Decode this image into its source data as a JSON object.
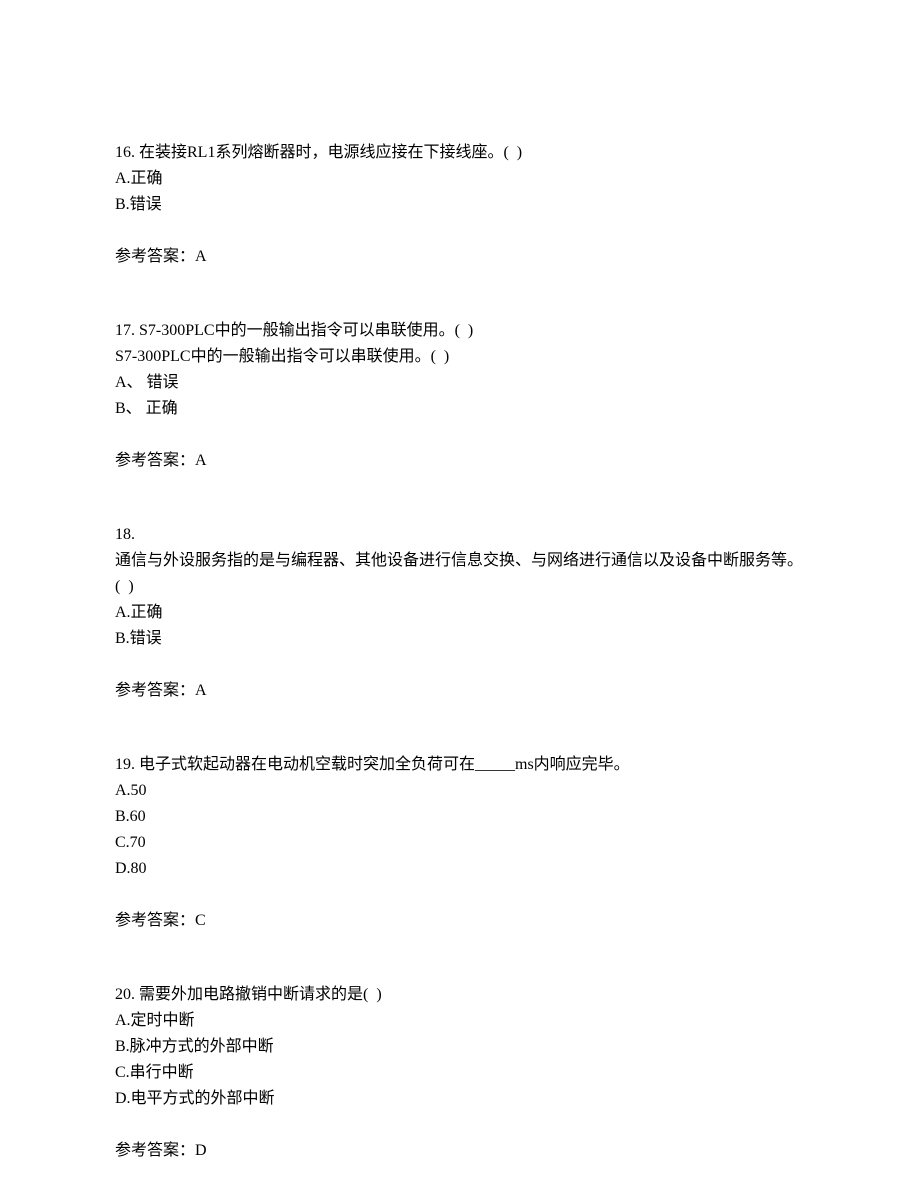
{
  "questions": [
    {
      "number": "16.",
      "text": " 在装接RL1系列熔断器时，电源线应接在下接线座。(  )",
      "options": [
        "A.正确",
        "B.错误"
      ],
      "answer": "参考答案：A"
    },
    {
      "number": "17.",
      "text": " S7-300PLC中的一般输出指令可以串联使用。(  )",
      "subtext": "S7-300PLC中的一般输出指令可以串联使用。(  )",
      "options": [
        "A、 错误",
        "B、 正确"
      ],
      "answer": "参考答案：A"
    },
    {
      "number": "18.",
      "text": "",
      "subtext": "通信与外设服务指的是与编程器、其他设备进行信息交换、与网络进行通信以及设备中断服务等。(  )",
      "options": [
        "A.正确",
        "B.错误"
      ],
      "answer": "参考答案：A"
    },
    {
      "number": "19.",
      "text": " 电子式软起动器在电动机空载时突加全负荷可在_____ms内响应完毕。",
      "options": [
        "A.50",
        "B.60",
        "C.70",
        "D.80"
      ],
      "answer": "参考答案：C"
    },
    {
      "number": "20.",
      "text": " 需要外加电路撤销中断请求的是(  )",
      "options": [
        "A.定时中断",
        "B.脉冲方式的外部中断",
        "C.串行中断",
        "D.电平方式的外部中断"
      ],
      "answer": "参考答案：D"
    }
  ]
}
